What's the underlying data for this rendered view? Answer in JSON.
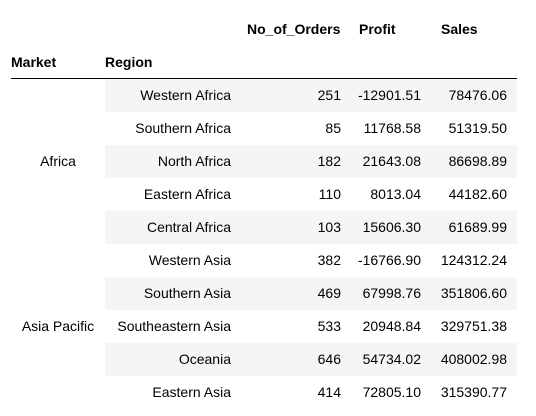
{
  "headers": {
    "columns": [
      "No_of_Orders",
      "Profit",
      "Sales"
    ],
    "index_names": [
      "Market",
      "Region"
    ]
  },
  "groups": [
    {
      "market": "Africa",
      "rows": [
        {
          "region": "Western Africa",
          "orders": "251",
          "profit": "-12901.51",
          "sales": "78476.06"
        },
        {
          "region": "Southern Africa",
          "orders": "85",
          "profit": "11768.58",
          "sales": "51319.50"
        },
        {
          "region": "North Africa",
          "orders": "182",
          "profit": "21643.08",
          "sales": "86698.89"
        },
        {
          "region": "Eastern Africa",
          "orders": "110",
          "profit": "8013.04",
          "sales": "44182.60"
        },
        {
          "region": "Central Africa",
          "orders": "103",
          "profit": "15606.30",
          "sales": "61689.99"
        }
      ]
    },
    {
      "market": "Asia Pacific",
      "rows": [
        {
          "region": "Western Asia",
          "orders": "382",
          "profit": "-16766.90",
          "sales": "124312.24"
        },
        {
          "region": "Southern Asia",
          "orders": "469",
          "profit": "67998.76",
          "sales": "351806.60"
        },
        {
          "region": "Southeastern Asia",
          "orders": "533",
          "profit": "20948.84",
          "sales": "329751.38"
        },
        {
          "region": "Oceania",
          "orders": "646",
          "profit": "54734.02",
          "sales": "408002.98"
        },
        {
          "region": "Eastern Asia",
          "orders": "414",
          "profit": "72805.10",
          "sales": "315390.77"
        }
      ]
    }
  ]
}
